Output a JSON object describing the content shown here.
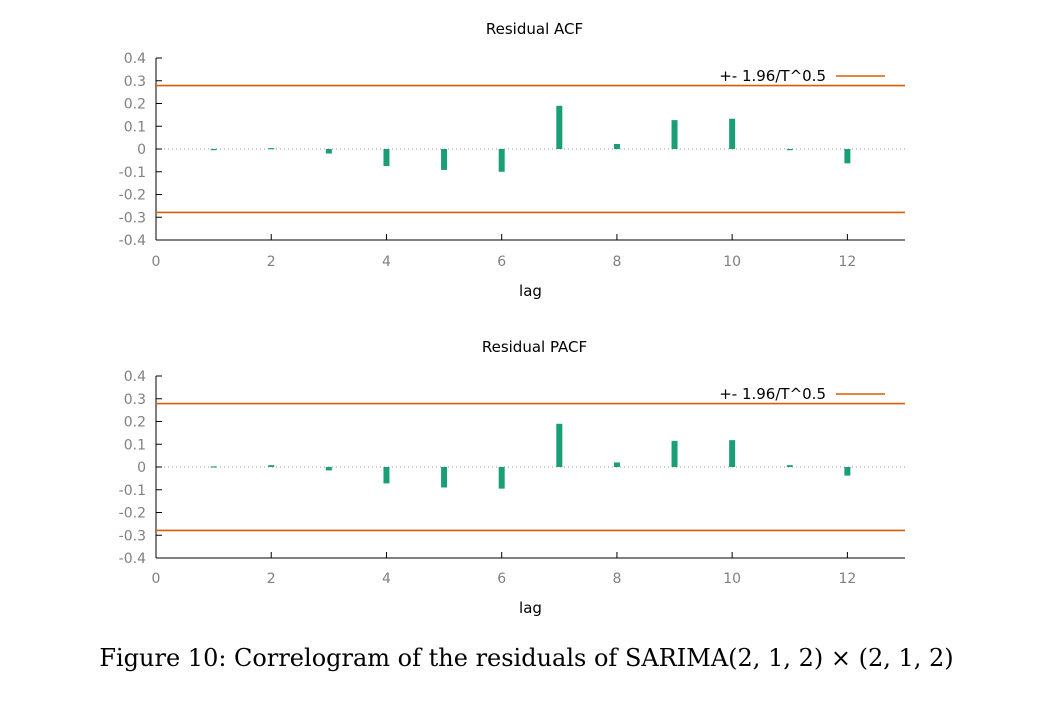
{
  "caption": "Figure 10: Correlogram of the residuals of SARIMA(2, 1, 2) × (2, 1, 2)",
  "colors": {
    "bars": "#1a9e77",
    "bounds": "#d95f02",
    "axis": "#000000",
    "ticks": "#808080",
    "zero_line": "#999999"
  },
  "chart_data": [
    {
      "type": "bar",
      "title": "Residual ACF",
      "xlabel": "lag",
      "ylabel": "",
      "xlim": [
        0,
        13
      ],
      "ylim": [
        -0.4,
        0.4
      ],
      "xticks": [
        0,
        2,
        4,
        6,
        8,
        10,
        12
      ],
      "yticks": [
        -0.4,
        -0.3,
        -0.2,
        -0.1,
        0,
        0.1,
        0.2,
        0.3,
        0.4
      ],
      "ytick_labels": [
        "-0.4",
        "-0.3",
        "-0.2",
        "-0.1",
        "0",
        "0.1",
        "0.2",
        "0.3",
        "0.4"
      ],
      "lags": [
        1,
        2,
        3,
        4,
        5,
        6,
        7,
        8,
        9,
        10,
        11,
        12
      ],
      "values": [
        -0.003,
        0.004,
        -0.02,
        -0.075,
        -0.092,
        -0.1,
        0.19,
        0.022,
        0.127,
        0.133,
        0.0,
        -0.063
      ],
      "bound": 0.279,
      "legend": "+- 1.96/T^0.5",
      "legend_position": "top-right"
    },
    {
      "type": "bar",
      "title": "Residual PACF",
      "xlabel": "lag",
      "ylabel": "",
      "xlim": [
        0,
        13
      ],
      "ylim": [
        -0.4,
        0.4
      ],
      "xticks": [
        0,
        2,
        4,
        6,
        8,
        10,
        12
      ],
      "yticks": [
        -0.4,
        -0.3,
        -0.2,
        -0.1,
        0,
        0.1,
        0.2,
        0.3,
        0.4
      ],
      "ytick_labels": [
        "-0.4",
        "-0.3",
        "-0.2",
        "-0.1",
        "0",
        "0.1",
        "0.2",
        "0.3",
        "0.4"
      ],
      "lags": [
        1,
        2,
        3,
        4,
        5,
        6,
        7,
        8,
        9,
        10,
        11,
        12
      ],
      "values": [
        0.003,
        0.008,
        -0.015,
        -0.072,
        -0.09,
        -0.095,
        0.19,
        0.02,
        0.115,
        0.118,
        0.008,
        -0.038
      ],
      "bound": 0.279,
      "legend": "+- 1.96/T^0.5",
      "legend_position": "top-right"
    }
  ]
}
